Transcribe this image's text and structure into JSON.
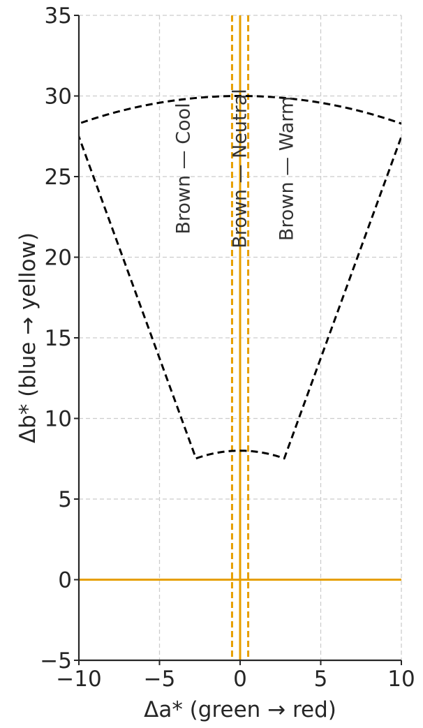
{
  "chart_data": {
    "type": "line",
    "xlabel": "Δa*  (green  →  red)",
    "ylabel": "Δb*  (blue  →  yellow)",
    "xlim": [
      -10,
      10
    ],
    "ylim": [
      -5,
      35
    ],
    "xticks": [
      -10,
      -5,
      0,
      5,
      10
    ],
    "yticks": [
      -5,
      0,
      5,
      10,
      15,
      20,
      25,
      30,
      35
    ],
    "xtick_labels": [
      "−10",
      "−5",
      "0",
      "5",
      "10"
    ],
    "ytick_labels": [
      "−5",
      "0",
      "5",
      "10",
      "15",
      "20",
      "25",
      "30",
      "35"
    ],
    "grid": true,
    "colors": {
      "reference": "#E69F00",
      "boundary": "#000000",
      "grid": "#CCCCCC",
      "axis": "#262626"
    },
    "reference_lines": [
      {
        "orientation": "horizontal",
        "y": 0,
        "style": "solid"
      },
      {
        "orientation": "vertical",
        "x": 0,
        "style": "solid"
      },
      {
        "orientation": "vertical",
        "x": -0.5,
        "style": "dashed"
      },
      {
        "orientation": "vertical",
        "x": 0.5,
        "style": "dashed"
      }
    ],
    "boundary": {
      "style": "dashed",
      "inner_arc_radius": 8,
      "outer_arc_radius": 30,
      "sector_angle_range_deg": [
        70,
        110
      ]
    },
    "annotations": [
      {
        "text": "Brown — Cool",
        "x": -3.5,
        "y": 25.5
      },
      {
        "text": "Brown — Neutral",
        "x": 0,
        "y": 25.5
      },
      {
        "text": "Brown — Warm",
        "x": 2.9,
        "y": 25.5
      }
    ]
  }
}
